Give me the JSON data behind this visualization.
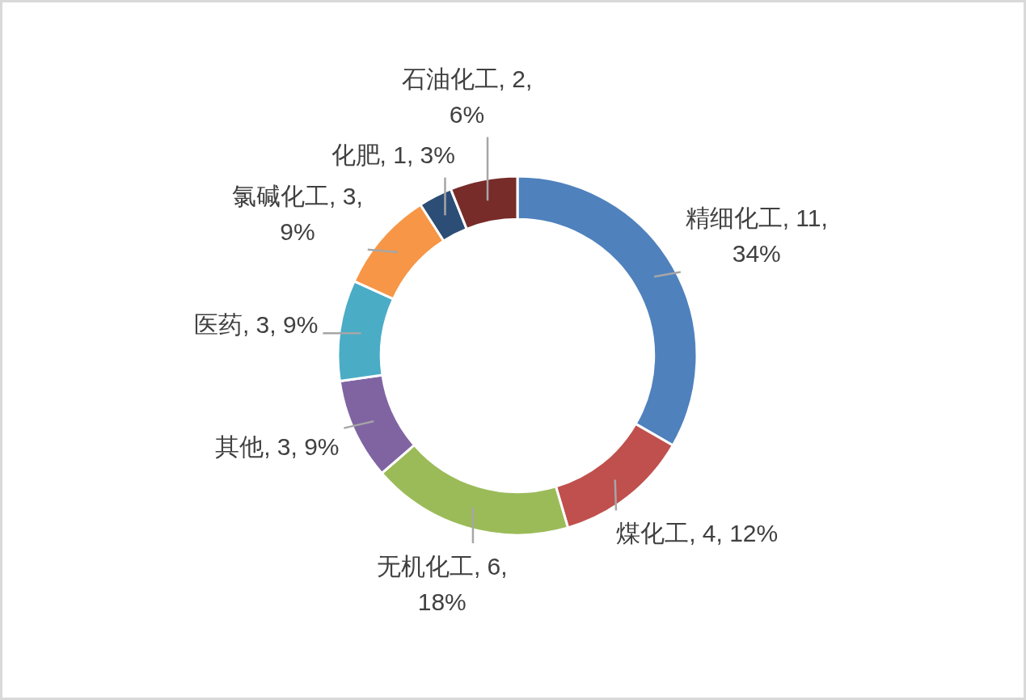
{
  "chart_data": {
    "type": "donut",
    "categories": [
      "精细化工",
      "煤化工",
      "无机化工",
      "其他",
      "医药",
      "氯碱化工",
      "化肥",
      "石油化工"
    ],
    "values": [
      11,
      4,
      6,
      3,
      3,
      3,
      1,
      2
    ],
    "colors": [
      "#4f81bd",
      "#c0504d",
      "#9bbb59",
      "#8064a2",
      "#4bacc6",
      "#f79646",
      "#2c4d75",
      "#772c2a"
    ],
    "value_labels": [
      "11, 34%",
      "4, 12%",
      "6, 18%",
      "3, 9%",
      "3, 9%",
      "3, 9%",
      "1, 3%",
      "2, 6%"
    ]
  }
}
